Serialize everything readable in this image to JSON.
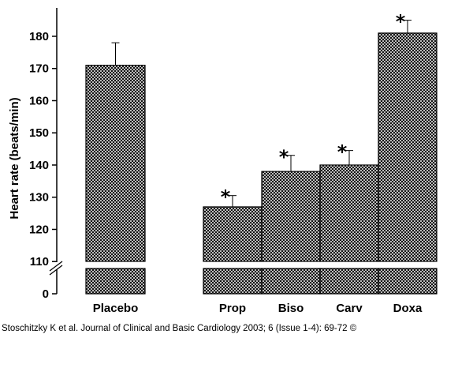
{
  "chart_data": {
    "type": "bar",
    "title": "",
    "xlabel": "",
    "ylabel": "Heart rate (beats/min)",
    "ylim": [
      105,
      185
    ],
    "axis_break": true,
    "y_ticks": [
      "110",
      "120",
      "130",
      "140",
      "150",
      "160",
      "170",
      "180"
    ],
    "y_zero_label": "0",
    "categories": [
      "Placebo",
      "Prop",
      "Biso",
      "Carv",
      "Doxa"
    ],
    "values": [
      171,
      127,
      138,
      140,
      181
    ],
    "error_upper": [
      178,
      130.5,
      143,
      144.5,
      185
    ],
    "significance": [
      "",
      "*",
      "*",
      "*",
      "*"
    ],
    "grid": false,
    "fill_pattern": "crosshatch"
  },
  "caption": "Stoschitzky K et al. Journal of Clinical and Basic Cardiology 2003; 6 (Issue 1-4): 69-72 ©"
}
